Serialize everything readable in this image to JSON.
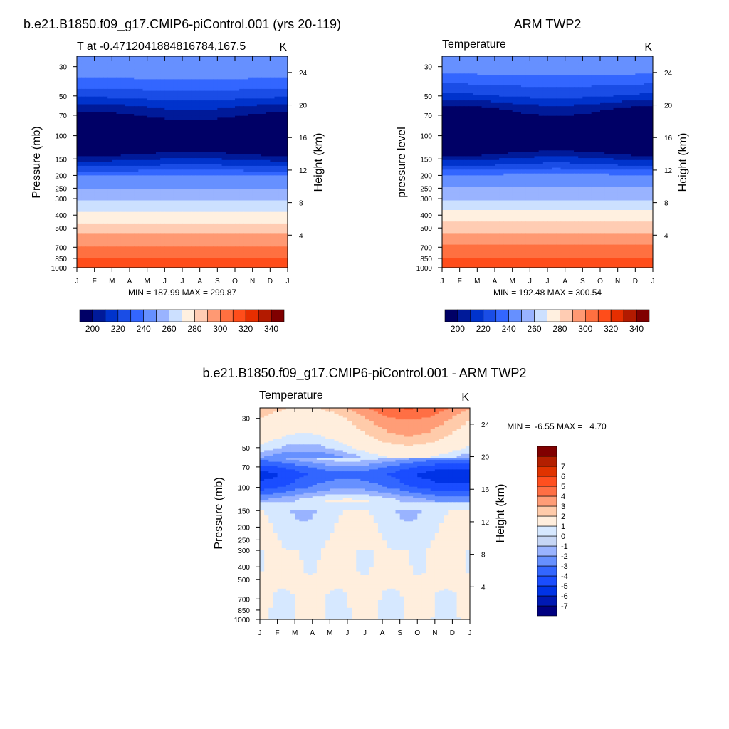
{
  "palette": {
    "temperature": [
      "#000066",
      "#001a99",
      "#0033cc",
      "#1a4de6",
      "#3366ff",
      "#6690ff",
      "#99b3ff",
      "#cce0ff",
      "#fff0e0",
      "#ffccb3",
      "#ff9973",
      "#ff7040",
      "#ff4d1a",
      "#e62e00",
      "#b31a00",
      "#800000"
    ],
    "difference": [
      "#000080",
      "#0019b3",
      "#0033e6",
      "#1a4dff",
      "#3366ff",
      "#6690ff",
      "#99b3ff",
      "#c6d6f5",
      "#d6e8ff",
      "#ffeedd",
      "#ffcbaa",
      "#ff9d77",
      "#ff6f44",
      "#ff4f1f",
      "#e03300",
      "#b31f00",
      "#800000"
    ]
  },
  "axes": {
    "pressure_ticks": [
      "30",
      "50",
      "70",
      "100",
      "150",
      "200",
      "250",
      "300",
      "400",
      "500",
      "700",
      "850",
      "1000"
    ],
    "height_ticks": [
      "24",
      "20",
      "16",
      "12",
      "8",
      "4"
    ],
    "month_ticks": [
      "J",
      "F",
      "M",
      "A",
      "M",
      "J",
      "J",
      "A",
      "S",
      "O",
      "N",
      "D",
      "J"
    ]
  },
  "chart_data": [
    {
      "type": "heatmap",
      "title": "b.e21.B1850.f09_g17.CMIP6-piControl.001 (yrs 20-119)",
      "subtitle_left": "T at -0.4712041884816784,167.5",
      "units": "K",
      "ylabel": "Pressure (mb)",
      "ylabel_right": "Height (km)",
      "xlim": [
        1,
        13
      ],
      "ylim_pressure": [
        1000,
        25
      ],
      "ylim_height_km": [
        0,
        26
      ],
      "stats": "MIN = 187.99 MAX = 299.87",
      "colorbar_levels": [
        195,
        200,
        205,
        210,
        215,
        220,
        225,
        230,
        235,
        240,
        245,
        250,
        255,
        260,
        265,
        270,
        275,
        280,
        285,
        290,
        295,
        300,
        310,
        320,
        330,
        340,
        350
      ],
      "colorbar_labels": [
        "200",
        "220",
        "240",
        "260",
        "280",
        "300",
        "320",
        "340"
      ],
      "field": {
        "pressure": [
          25,
          30,
          40,
          50,
          60,
          70,
          80,
          100,
          125,
          150,
          175,
          200,
          250,
          300,
          350,
          400,
          450,
          500,
          600,
          700,
          800,
          850,
          925,
          1000
        ],
        "T": [
          226,
          225,
          218,
          212,
          205,
          200,
          196,
          193,
          195,
          204,
          212,
          220,
          230,
          238,
          246,
          253,
          259,
          265,
          274,
          281,
          287,
          290,
          294,
          299
        ]
      }
    },
    {
      "type": "heatmap",
      "title": "ARM TWP2",
      "subtitle_left": "Temperature",
      "units": "K",
      "ylabel": "pressure level",
      "ylabel_right": "Height (km)",
      "xlim": [
        1,
        13
      ],
      "ylim_pressure": [
        1000,
        25
      ],
      "ylim_height_km": [
        0,
        26
      ],
      "stats": "MIN = 192.48 MAX = 300.54",
      "colorbar_levels": [
        195,
        200,
        205,
        210,
        215,
        220,
        225,
        230,
        235,
        240,
        245,
        250,
        255,
        260,
        265,
        270,
        275,
        280,
        285,
        290,
        295,
        300,
        310,
        320,
        330,
        340,
        350
      ],
      "colorbar_labels": [
        "200",
        "220",
        "240",
        "260",
        "280",
        "300",
        "320",
        "340"
      ],
      "field": {
        "pressure": [
          25,
          30,
          40,
          50,
          60,
          70,
          80,
          100,
          125,
          150,
          175,
          200,
          250,
          300,
          350,
          400,
          450,
          500,
          600,
          700,
          800,
          850,
          925,
          1000
        ],
        "T": [
          226,
          224,
          216,
          210,
          202,
          197,
          194,
          193,
          195,
          205,
          213,
          221,
          231,
          239,
          247,
          254,
          260,
          266,
          275,
          282,
          288,
          291,
          295,
          300
        ]
      }
    },
    {
      "type": "heatmap",
      "title": "b.e21.B1850.f09_g17.CMIP6-piControl.001 - ARM TWP2",
      "subtitle_left": "Temperature",
      "units": "K",
      "ylabel": "Pressure (mb)",
      "ylabel_right": "Height (km)",
      "xlim": [
        1,
        13
      ],
      "ylim_pressure": [
        1000,
        25
      ],
      "ylim_height_km": [
        0,
        26
      ],
      "stats": "MIN =  -6.55 MAX =   4.70",
      "colorbar_levels": [
        -8,
        -7,
        -6,
        -5,
        -4,
        -3,
        -2,
        -1,
        0,
        1,
        2,
        3,
        4,
        5,
        6,
        7,
        8
      ],
      "colorbar_labels": [
        "-7",
        "-6",
        "-5",
        "-4",
        "-3",
        "-2",
        "-1",
        "0",
        "1",
        "2",
        "3",
        "4",
        "5",
        "6",
        "7"
      ],
      "field": {
        "pressure": [
          25,
          30,
          40,
          50,
          60,
          70,
          80,
          100,
          125,
          150,
          200,
          300,
          400,
          500,
          700,
          850,
          1000
        ],
        "dT": [
          3.5,
          2.5,
          1.5,
          0.2,
          -1.5,
          -3.5,
          -4.5,
          -3.5,
          -1.0,
          -0.5,
          -0.2,
          0.3,
          0.5,
          0.4,
          0.2,
          0.1,
          0.0
        ]
      }
    }
  ]
}
